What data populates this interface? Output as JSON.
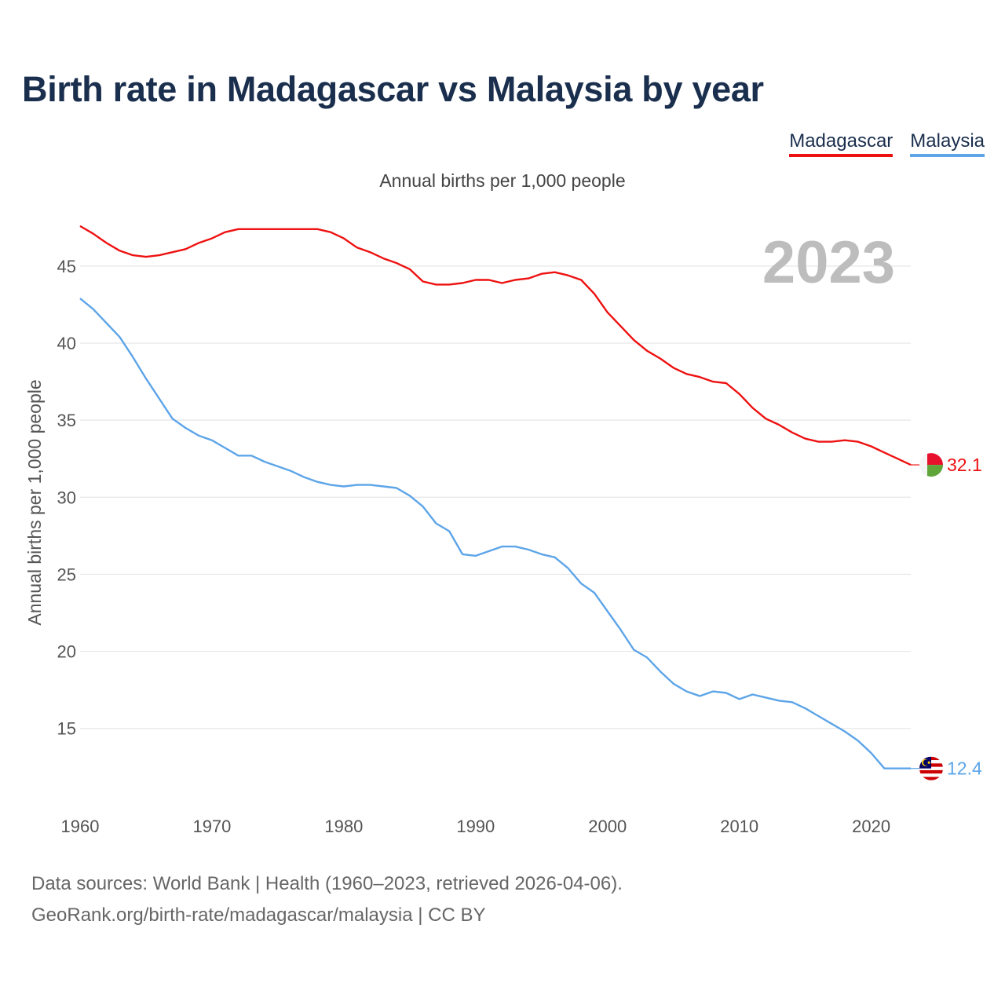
{
  "title": "Birth rate in Madagascar vs Malaysia by year",
  "legend": [
    {
      "label": "Madagascar",
      "color": "#ee1111"
    },
    {
      "label": "Malaysia",
      "color": "#5da5e8"
    }
  ],
  "subtitle": "Annual births per 1,000 people",
  "source_line1": "Data sources: World Bank | Health (1960–2023, retrieved 2026-04-06).",
  "source_line2": "GeoRank.org/birth-rate/madagascar/malaysia | CC BY",
  "chart_data": {
    "type": "line",
    "title": "Birth rate in Madagascar vs Malaysia by year",
    "xlabel": "",
    "ylabel": "Annual births per 1,000 people",
    "year_label": "2023",
    "xlim": [
      1960,
      2023
    ],
    "ylim": [
      10.5,
      48
    ],
    "x_ticks": [
      1960,
      1970,
      1980,
      1990,
      2000,
      2010,
      2020
    ],
    "y_ticks": [
      15,
      20,
      25,
      30,
      35,
      40,
      45
    ],
    "grid": true,
    "x": [
      1960,
      1961,
      1962,
      1963,
      1964,
      1965,
      1966,
      1967,
      1968,
      1969,
      1970,
      1971,
      1972,
      1973,
      1974,
      1975,
      1976,
      1977,
      1978,
      1979,
      1980,
      1981,
      1982,
      1983,
      1984,
      1985,
      1986,
      1987,
      1988,
      1989,
      1990,
      1991,
      1992,
      1993,
      1994,
      1995,
      1996,
      1997,
      1998,
      1999,
      2000,
      2001,
      2002,
      2003,
      2004,
      2005,
      2006,
      2007,
      2008,
      2009,
      2010,
      2011,
      2012,
      2013,
      2014,
      2015,
      2016,
      2017,
      2018,
      2019,
      2020,
      2021,
      2022,
      2023
    ],
    "series": [
      {
        "name": "Madagascar",
        "color": "#ee1111",
        "end_label": "32.1",
        "values": [
          47.6,
          47.1,
          46.5,
          46.0,
          45.7,
          45.6,
          45.7,
          45.9,
          46.1,
          46.5,
          46.8,
          47.2,
          47.4,
          47.4,
          47.4,
          47.4,
          47.4,
          47.4,
          47.4,
          47.2,
          46.8,
          46.2,
          45.9,
          45.5,
          45.2,
          44.8,
          44.0,
          43.8,
          43.8,
          43.9,
          44.1,
          44.1,
          43.9,
          44.1,
          44.2,
          44.5,
          44.6,
          44.4,
          44.1,
          43.2,
          42.0,
          41.1,
          40.2,
          39.5,
          39.0,
          38.4,
          38.0,
          37.8,
          37.5,
          37.4,
          36.7,
          35.8,
          35.1,
          34.7,
          34.2,
          33.8,
          33.6,
          33.6,
          33.7,
          33.6,
          33.3,
          32.9,
          32.5,
          32.1
        ]
      },
      {
        "name": "Malaysia",
        "color": "#5da5e8",
        "end_label": "12.4",
        "values": [
          42.9,
          42.2,
          41.3,
          40.4,
          39.1,
          37.7,
          36.4,
          35.1,
          34.5,
          34.0,
          33.7,
          33.2,
          32.7,
          32.7,
          32.3,
          32.0,
          31.7,
          31.3,
          31.0,
          30.8,
          30.7,
          30.8,
          30.8,
          30.7,
          30.6,
          30.1,
          29.4,
          28.3,
          27.8,
          26.3,
          26.2,
          26.5,
          26.8,
          26.8,
          26.6,
          26.3,
          26.1,
          25.4,
          24.4,
          23.8,
          22.6,
          21.4,
          20.1,
          19.6,
          18.7,
          17.9,
          17.4,
          17.1,
          17.4,
          17.3,
          16.9,
          17.2,
          17.0,
          16.8,
          16.7,
          16.3,
          15.8,
          15.3,
          14.8,
          14.2,
          13.4,
          12.4,
          12.4,
          12.4
        ]
      }
    ]
  }
}
